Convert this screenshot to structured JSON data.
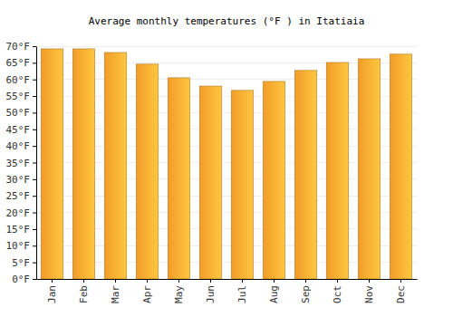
{
  "chart_data": {
    "type": "bar",
    "title": "Average monthly temperatures (°F ) in Itatiaia",
    "categories": [
      "Jan",
      "Feb",
      "Mar",
      "Apr",
      "May",
      "Jun",
      "Jul",
      "Aug",
      "Sep",
      "Oct",
      "Nov",
      "Dec"
    ],
    "values": [
      69.2,
      69.2,
      68.1,
      64.6,
      60.5,
      58.0,
      56.7,
      59.4,
      62.7,
      65.1,
      66.2,
      67.6
    ],
    "color": "#ffa52a",
    "ylim": [
      0,
      70
    ],
    "yticks": [
      {
        "value": 0,
        "label": "0°F"
      },
      {
        "value": 5,
        "label": "5°F"
      },
      {
        "value": 10,
        "label": "10°F"
      },
      {
        "value": 15,
        "label": "15°F"
      },
      {
        "value": 20,
        "label": "20°F"
      },
      {
        "value": 25,
        "label": "25°F"
      },
      {
        "value": 30,
        "label": "30°F"
      },
      {
        "value": 35,
        "label": "35°F"
      },
      {
        "value": 40,
        "label": "40°F"
      },
      {
        "value": 45,
        "label": "45°F"
      },
      {
        "value": 50,
        "label": "50°F"
      },
      {
        "value": 55,
        "label": "55°F"
      },
      {
        "value": 60,
        "label": "60°F"
      },
      {
        "value": 65,
        "label": "65°F"
      },
      {
        "value": 70,
        "label": "70°F"
      }
    ],
    "grid": true
  }
}
